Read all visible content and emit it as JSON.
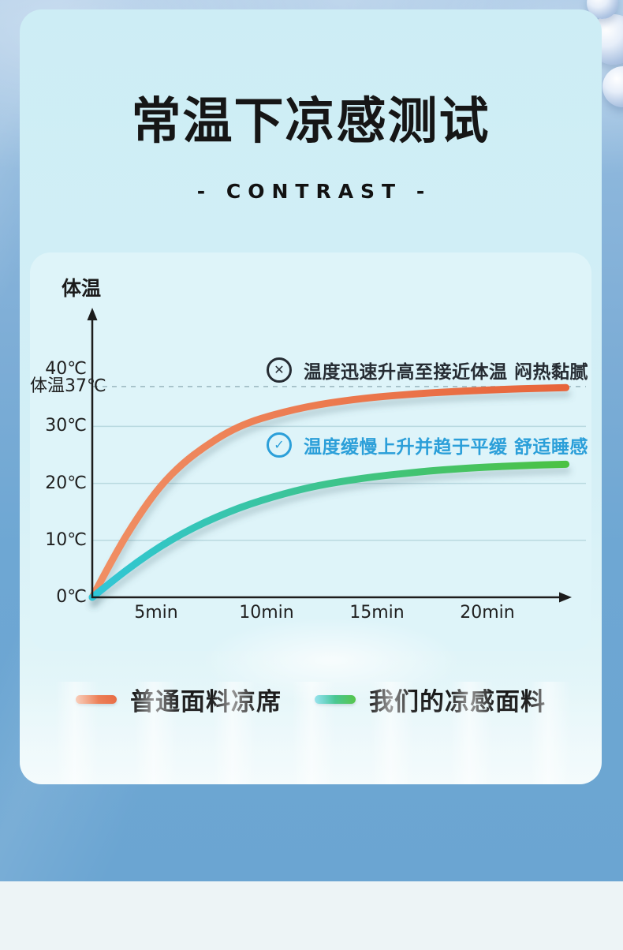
{
  "page": {
    "title": "常温下凉感测试",
    "subtitle": "- CONTRAST -"
  },
  "chart_data": {
    "type": "line",
    "title": "常温下凉感测试",
    "y_axis_title": "体温",
    "x_unit": "min",
    "xlim": [
      0,
      21
    ],
    "ylim": [
      0,
      45
    ],
    "grid": "horizontal",
    "xticks": {
      "values": [
        5,
        10,
        15,
        20
      ],
      "labels": [
        "5min",
        "10min",
        "15min",
        "20min"
      ]
    },
    "yticks": {
      "values": [
        40,
        37,
        30,
        20,
        10,
        0
      ],
      "labels": [
        "40℃",
        "体温37℃",
        "30℃",
        "20℃",
        "10℃",
        "0℃"
      ]
    },
    "gridlines_solid": [
      30,
      20,
      10
    ],
    "gridline_dashed": 37,
    "x": [
      0,
      1,
      2,
      3,
      4,
      5,
      6,
      7,
      8,
      9,
      10,
      11,
      12,
      13,
      14,
      15,
      16,
      17,
      18,
      19,
      20,
      21
    ],
    "series": [
      {
        "name": "普通面料凉席",
        "asymptote_c": 37,
        "color_start": "#f08f64",
        "color_end": "#e7643a",
        "values": [
          0,
          7.5,
          14,
          19.5,
          23.5,
          26.5,
          29,
          30.8,
          32,
          33,
          33.8,
          34.4,
          34.9,
          35.3,
          35.6,
          35.9,
          36.1,
          36.3,
          36.45,
          36.6,
          36.7,
          36.8
        ]
      },
      {
        "name": "我们的凉感面料",
        "asymptote_c": 23.4,
        "color_start": "#2fc6d8",
        "color_end": "#4cc240",
        "values": [
          0,
          3.2,
          6.2,
          8.9,
          11.2,
          13.2,
          14.9,
          16.4,
          17.6,
          18.7,
          19.6,
          20.3,
          20.9,
          21.4,
          21.8,
          22.2,
          22.5,
          22.75,
          22.95,
          23.1,
          23.25,
          23.35
        ]
      }
    ],
    "annotations": [
      {
        "icon": "circle-cross",
        "glyph": "✕",
        "text": "温度迅速升高至接近体温 闷热黏腻",
        "color": "#262c33"
      },
      {
        "icon": "circle-check",
        "glyph": "✓",
        "text": "温度缓慢上升并趋于平缓 舒适睡感",
        "color": "#2b9fd9"
      }
    ],
    "legend_position": "bottom"
  },
  "colors": {
    "card_bg": "#cdedf5",
    "panel_bg": "#def4f9",
    "page_blue": "#6ba5d2",
    "axis": "#1c1c1c",
    "grid_solid": "#b9d9e0",
    "grid_dashed": "#9ab7bf"
  }
}
